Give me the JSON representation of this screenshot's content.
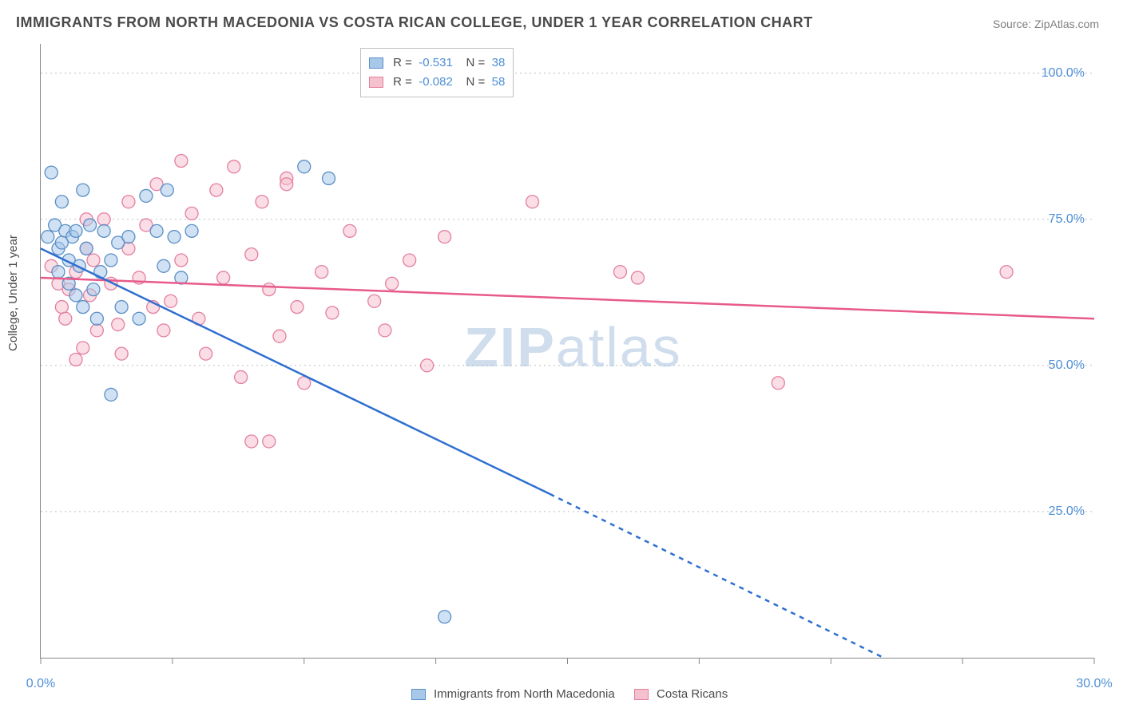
{
  "title": "IMMIGRANTS FROM NORTH MACEDONIA VS COSTA RICAN COLLEGE, UNDER 1 YEAR CORRELATION CHART",
  "source": "Source: ZipAtlas.com",
  "ylabel": "College, Under 1 year",
  "watermark_zip": "ZIP",
  "watermark_rest": "atlas",
  "chart": {
    "type": "scatter-correlation",
    "xlim": [
      0,
      30
    ],
    "ylim": [
      0,
      105
    ],
    "xticks": [
      0,
      3.75,
      7.5,
      11.25,
      15,
      18.75,
      22.5,
      26.25,
      30
    ],
    "xtick_labels": {
      "0": "0.0%",
      "30": "30.0%"
    },
    "yticks": [
      25,
      50,
      75,
      100
    ],
    "ytick_labels": {
      "25": "25.0%",
      "50": "50.0%",
      "75": "75.0%",
      "100": "100.0%"
    },
    "background_color": "#ffffff",
    "grid_color": "#bfbfbf",
    "marker_radius": 8,
    "marker_opacity": 0.55
  },
  "series": {
    "blue": {
      "label": "Immigrants from North Macedonia",
      "fill": "#a8c8ea",
      "stroke": "#5b8fc7",
      "line_color": "#2f6fd0",
      "R": "-0.531",
      "N": "38",
      "trend": {
        "x1": 0,
        "y1": 70,
        "x2": 14.5,
        "y2": 28,
        "x2b": 24,
        "y2b": 0
      },
      "points": [
        [
          0.2,
          72
        ],
        [
          0.3,
          83
        ],
        [
          0.4,
          74
        ],
        [
          0.5,
          70
        ],
        [
          0.5,
          66
        ],
        [
          0.6,
          78
        ],
        [
          0.7,
          73
        ],
        [
          0.8,
          68
        ],
        [
          0.8,
          64
        ],
        [
          0.9,
          72
        ],
        [
          1.0,
          62
        ],
        [
          1.0,
          73
        ],
        [
          1.1,
          67
        ],
        [
          1.2,
          60
        ],
        [
          1.2,
          80
        ],
        [
          1.3,
          70
        ],
        [
          1.4,
          74
        ],
        [
          1.5,
          63
        ],
        [
          1.6,
          58
        ],
        [
          1.7,
          66
        ],
        [
          1.8,
          73
        ],
        [
          2.0,
          45
        ],
        [
          2.0,
          68
        ],
        [
          2.2,
          71
        ],
        [
          2.3,
          60
        ],
        [
          2.5,
          72
        ],
        [
          2.8,
          58
        ],
        [
          3.0,
          79
        ],
        [
          3.3,
          73
        ],
        [
          3.5,
          67
        ],
        [
          3.6,
          80
        ],
        [
          3.8,
          72
        ],
        [
          4.0,
          65
        ],
        [
          4.3,
          73
        ],
        [
          7.5,
          84
        ],
        [
          8.2,
          82
        ],
        [
          11.5,
          7
        ],
        [
          0.6,
          71
        ]
      ]
    },
    "pink": {
      "label": "Costa Ricans",
      "fill": "#f6c1cf",
      "stroke": "#e37fa0",
      "line_color": "#e75a8a",
      "R": "-0.082",
      "N": "58",
      "trend": {
        "x1": 0,
        "y1": 65,
        "x2": 30,
        "y2": 58
      },
      "points": [
        [
          0.3,
          67
        ],
        [
          0.5,
          64
        ],
        [
          0.6,
          60
        ],
        [
          0.7,
          58
        ],
        [
          0.8,
          63
        ],
        [
          1.0,
          66
        ],
        [
          1.0,
          51
        ],
        [
          1.2,
          53
        ],
        [
          1.3,
          70
        ],
        [
          1.3,
          75
        ],
        [
          1.4,
          62
        ],
        [
          1.5,
          68
        ],
        [
          1.6,
          56
        ],
        [
          1.8,
          75
        ],
        [
          2.0,
          64
        ],
        [
          2.2,
          57
        ],
        [
          2.3,
          52
        ],
        [
          2.5,
          70
        ],
        [
          2.5,
          78
        ],
        [
          2.8,
          65
        ],
        [
          3.0,
          74
        ],
        [
          3.2,
          60
        ],
        [
          3.3,
          81
        ],
        [
          3.5,
          56
        ],
        [
          3.7,
          61
        ],
        [
          4.0,
          68
        ],
        [
          4.0,
          85
        ],
        [
          4.3,
          76
        ],
        [
          4.5,
          58
        ],
        [
          4.7,
          52
        ],
        [
          5.0,
          80
        ],
        [
          5.2,
          65
        ],
        [
          5.5,
          84
        ],
        [
          5.7,
          48
        ],
        [
          6.0,
          69
        ],
        [
          6.0,
          37
        ],
        [
          6.3,
          78
        ],
        [
          6.5,
          63
        ],
        [
          6.5,
          37
        ],
        [
          6.8,
          55
        ],
        [
          7.0,
          82
        ],
        [
          7.3,
          60
        ],
        [
          7.5,
          47
        ],
        [
          8.0,
          66
        ],
        [
          8.3,
          59
        ],
        [
          8.8,
          73
        ],
        [
          9.5,
          61
        ],
        [
          9.8,
          56
        ],
        [
          10.0,
          64
        ],
        [
          10.5,
          68
        ],
        [
          11.0,
          50
        ],
        [
          11.5,
          72
        ],
        [
          14.0,
          78
        ],
        [
          16.5,
          66
        ],
        [
          17.0,
          65
        ],
        [
          21.0,
          47
        ],
        [
          27.5,
          66
        ],
        [
          7.0,
          81
        ]
      ]
    }
  },
  "corr_box": {
    "R_label": "R  =",
    "N_label": "N  ="
  }
}
